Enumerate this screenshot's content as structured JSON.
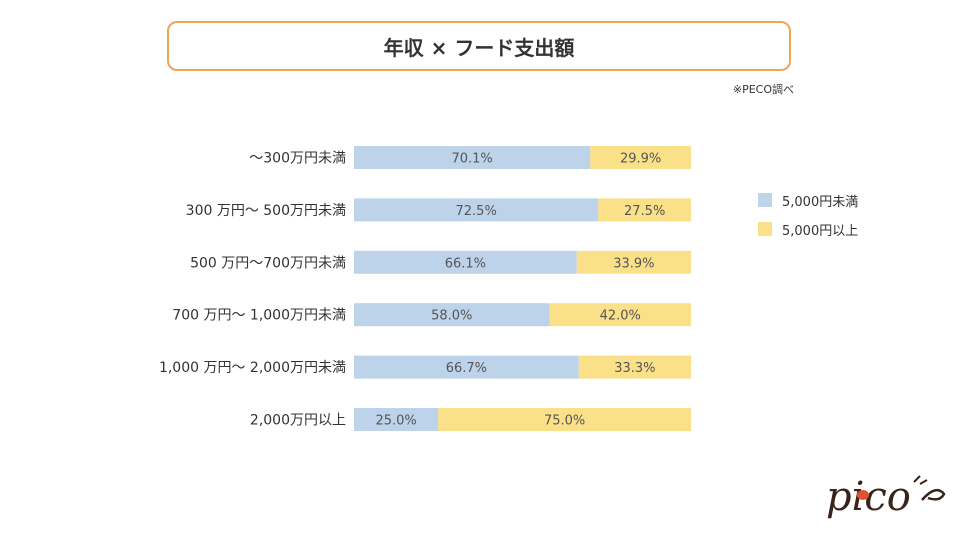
{
  "title": "年収 × フード支出額",
  "source": "※PECO調べ",
  "logo_text": "pico",
  "colors": {
    "under": "#bdd3ea",
    "over": "#fbe08a",
    "border": "#f0a35a",
    "text": "#333333",
    "logo": "#3a2419",
    "logo_accent": "#d9542f"
  },
  "chart_data": {
    "type": "bar",
    "orientation": "horizontal",
    "stacked": true,
    "percent": true,
    "title": "年収 × フード支出額",
    "xlim": [
      0,
      100
    ],
    "categories": [
      "〜300万円未満",
      "300 万円〜 500万円未満",
      "500 万円〜700万円未満",
      "700 万円〜 1,000万円未満",
      "1,000 万円〜 2,000万円未満",
      "2,000万円以上"
    ],
    "series": [
      {
        "name": "5,000円未満",
        "values": [
          70.1,
          72.5,
          66.1,
          58.0,
          66.7,
          25.0
        ],
        "labels": [
          "70.1%",
          "72.5%",
          "66.1%",
          "58.0%",
          "66.7%",
          "25.0%"
        ]
      },
      {
        "name": "5,000円以上",
        "values": [
          29.9,
          27.5,
          33.9,
          42.0,
          33.3,
          75.0
        ],
        "labels": [
          "29.9%",
          "27.5%",
          "33.9%",
          "42.0%",
          "33.3%",
          "75.0%"
        ]
      }
    ],
    "legend_position": "right"
  }
}
